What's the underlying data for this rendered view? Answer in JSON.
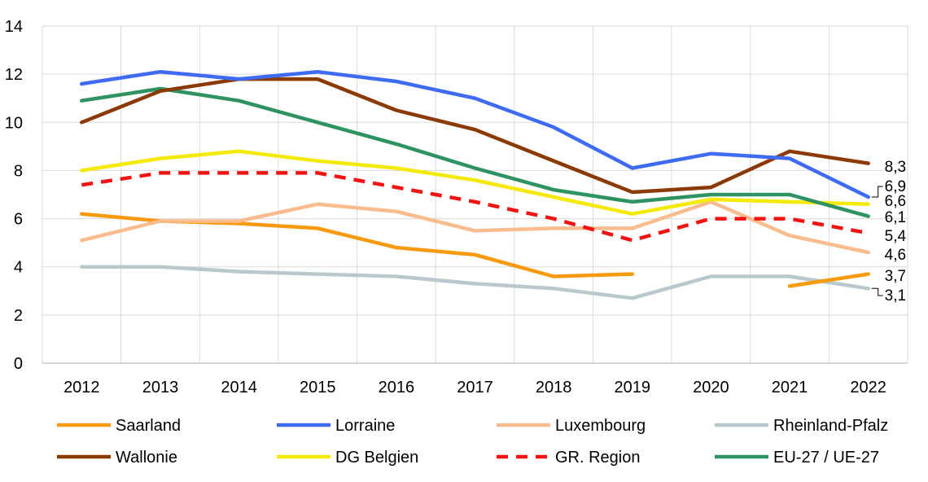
{
  "chart_data": {
    "type": "line",
    "title": "",
    "xlabel": "",
    "ylabel": "",
    "categories": [
      "2012",
      "2013",
      "2014",
      "2015",
      "2016",
      "2017",
      "2018",
      "2019",
      "2020",
      "2021",
      "2022"
    ],
    "ylim": [
      0,
      14
    ],
    "yticks": [
      "0",
      "2",
      "4",
      "6",
      "8",
      "10",
      "12",
      "14"
    ],
    "grid": true,
    "legend_position": "bottom",
    "series": [
      {
        "name": "Saarland",
        "color": "#F79A0E",
        "dashed": false,
        "values": [
          6.2,
          5.9,
          5.8,
          5.6,
          4.8,
          4.5,
          3.6,
          3.7,
          null,
          3.2,
          3.7
        ],
        "end_label": "3,7"
      },
      {
        "name": "Lorraine",
        "color": "#3F6BF2",
        "dashed": false,
        "values": [
          11.6,
          12.1,
          11.8,
          12.1,
          11.7,
          11.0,
          9.8,
          8.1,
          8.7,
          8.5,
          6.9
        ],
        "end_label": "6,9"
      },
      {
        "name": "Luxembourg",
        "color": "#F8BC8E",
        "dashed": false,
        "values": [
          5.1,
          5.9,
          5.9,
          6.6,
          6.3,
          5.5,
          5.6,
          5.6,
          6.7,
          5.3,
          4.6
        ],
        "end_label": "4,6"
      },
      {
        "name": "Rheinland-Pfalz",
        "color": "#B9C9CB",
        "dashed": false,
        "values": [
          4.0,
          4.0,
          3.8,
          3.7,
          3.6,
          3.3,
          3.1,
          2.7,
          3.6,
          3.6,
          3.1
        ],
        "end_label": "3,1"
      },
      {
        "name": "Wallonie",
        "color": "#8B3A05",
        "dashed": false,
        "values": [
          10.0,
          11.3,
          11.8,
          11.8,
          10.5,
          9.7,
          8.4,
          7.1,
          7.3,
          8.8,
          8.3
        ],
        "end_label": "8,3"
      },
      {
        "name": "DG Belgien",
        "color": "#F5E908",
        "dashed": false,
        "values": [
          8.0,
          8.5,
          8.8,
          8.4,
          8.1,
          7.6,
          6.9,
          6.2,
          6.8,
          6.7,
          6.6
        ],
        "end_label": "6,6"
      },
      {
        "name": "GR. Region",
        "color": "#F21313",
        "dashed": true,
        "values": [
          7.4,
          7.9,
          7.9,
          7.9,
          7.3,
          6.7,
          6.0,
          5.1,
          6.0,
          6.0,
          5.4
        ],
        "end_label": "5,4"
      },
      {
        "name": "EU-27 / UE-27",
        "color": "#2F9262",
        "dashed": false,
        "values": [
          10.9,
          11.4,
          10.9,
          10.0,
          9.1,
          8.1,
          7.2,
          6.7,
          7.0,
          7.0,
          6.1
        ],
        "end_label": "6,1"
      }
    ]
  }
}
